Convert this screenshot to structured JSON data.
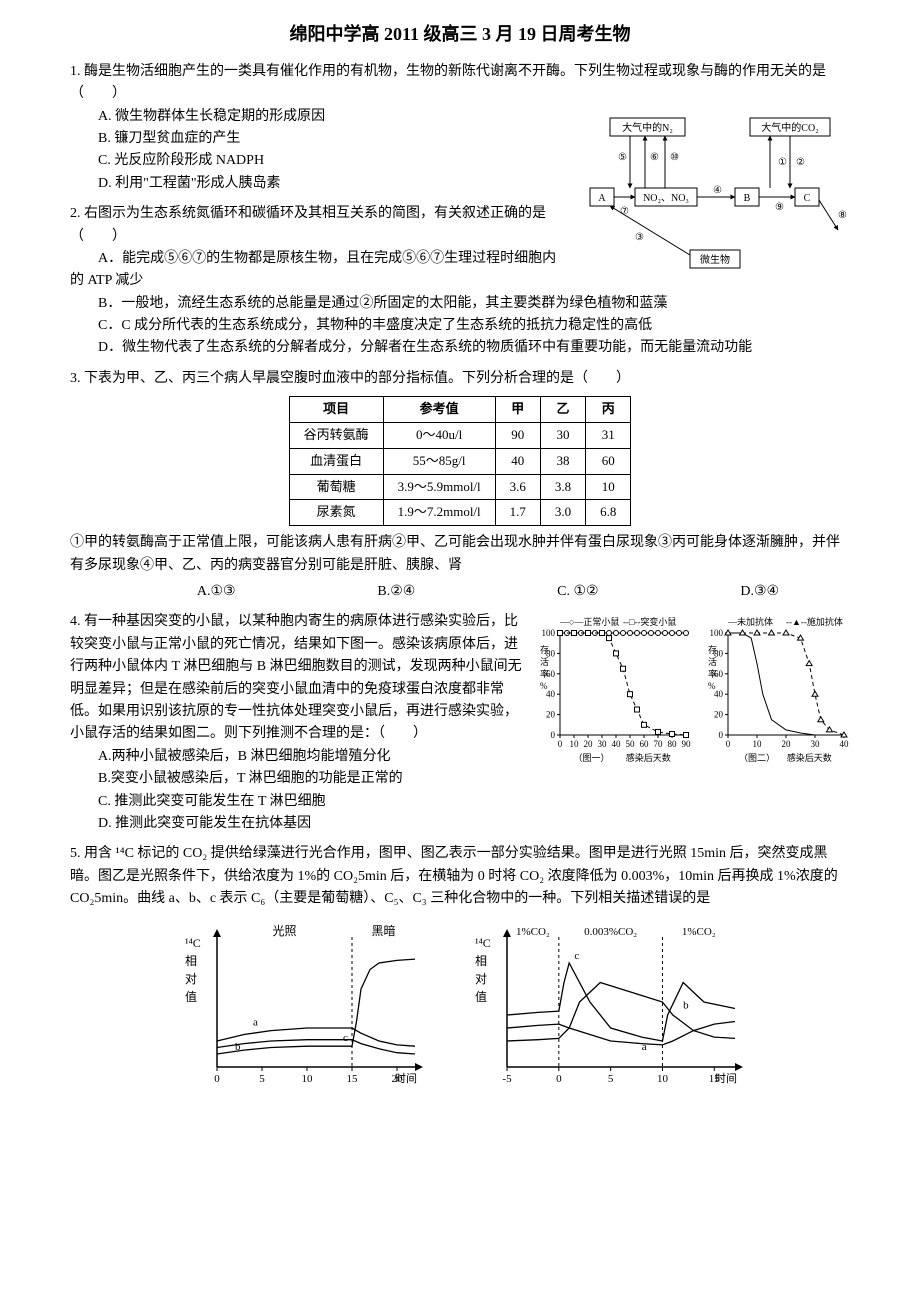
{
  "title": "绵阳中学高 2011 级高三 3 月 19 日周考生物",
  "q1": {
    "stem": "1. 酶是生物活细胞产生的一类具有催化作用的有机物，生物的新陈代谢离不开酶。下列生物过程或现象与酶的作用无关的是（　　）",
    "A": "A. 微生物群体生长稳定期的形成原因",
    "B": "B. 镰刀型贫血症的产生",
    "C": "C. 光反应阶段形成 NADPH",
    "D": "D. 利用\"工程菌\"形成人胰岛素"
  },
  "q2": {
    "stem1": "2. 右图示为生态系统氮循环和碳循环及其相互关系的简图，有关叙述正确的是（　　）",
    "A": "A．能完成⑤⑥⑦的生物都是原核生物，且在完成⑤⑥⑦生理过程时细胞内的 ATP 减少",
    "B": "B．一般地，流经生态系统的总能量是通过②所固定的太阳能，其主要类群为绿色植物和蓝藻",
    "C": "C．C 成分所代表的生态系统成分，其物种的丰盛度决定了生态系统的抵抗力稳定性的高低",
    "D": "D．微生物代表了生态系统的分解者成分，分解者在生态系统的物质循环中有重要功能，而无能量流动功能"
  },
  "q2_diagram": {
    "boxes": {
      "n2": "大气中的N₂",
      "co2": "大气中的CO₂",
      "a": "A",
      "no": "NO₂、NO₃",
      "b": "B",
      "c": "C",
      "micro": "微生物"
    },
    "labels": [
      "①",
      "②",
      "③",
      "④",
      "⑤",
      "⑥",
      "⑦",
      "⑧",
      "⑨",
      "⑩"
    ],
    "box_stroke": "#000000",
    "box_fill": "#ffffff",
    "arrow_color": "#000000",
    "fontsize": 10
  },
  "q3": {
    "stem": "3. 下表为甲、乙、丙三个病人早晨空腹时血液中的部分指标值。下列分析合理的是（　　）",
    "table": {
      "columns": [
        "项目",
        "参考值",
        "甲",
        "乙",
        "丙"
      ],
      "rows": [
        [
          "谷丙转氨酶",
          "0～40u/l",
          "90",
          "30",
          "31"
        ],
        [
          "血清蛋白",
          "55～85g/l",
          "40",
          "38",
          "60"
        ],
        [
          "葡萄糖",
          "3.9～5.9mmol/l",
          "3.6",
          "3.8",
          "10"
        ],
        [
          "尿素氮",
          "1.9～7.2mmol/l",
          "1.7",
          "3.0",
          "6.8"
        ]
      ],
      "border_color": "#000000",
      "header_bg": "#ffffff"
    },
    "desc": "①甲的转氨酶高于正常值上限，可能该病人患有肝病②甲、乙可能会出现水肿并伴有蛋白尿现象③丙可能身体逐渐臃肿，并伴有多尿现象④甲、乙、丙的病变器官分别可能是肝脏、胰腺、肾",
    "opts": {
      "A": "A.①③",
      "B": "B.②④",
      "C": "C. ①②",
      "D": "D.③④"
    }
  },
  "q4": {
    "stem": "4. 有一种基因突变的小鼠，以某种胞内寄生的病原体进行感染实验后，比较突变小鼠与正常小鼠的死亡情况，结果如下图一。感染该病原体后，进行两种小鼠体内 T 淋巴细胞与 B 淋巴细胞数目的测试，发现两种小鼠间无明显差异；但是在感染前后的突变小鼠血清中的免疫球蛋白浓度都非常低。如果用识别该抗原的专一性抗体处理突变小鼠后，再进行感染实验，小鼠存活的结果如图二。则下列推测不合理的是：（　　）",
    "A": "A.两种小鼠被感染后，B 淋巴细胞均能增殖分化",
    "B": "B.突变小鼠被感染后，T 淋巴细胞的功能是正常的",
    "C": "C. 推测此突变可能发生在 T 淋巴细胞",
    "D": "D. 推测此突变可能发生在抗体基因"
  },
  "q4_chart1": {
    "type": "line",
    "title_top_left": "—○—正常小鼠",
    "title_top_right": "--□--突变小鼠",
    "ylabel": "存活率%",
    "xlabel": "（图一）",
    "xlabel2": "感染后天数",
    "xlim": [
      0,
      90
    ],
    "ylim": [
      0,
      100
    ],
    "xticks": [
      0,
      10,
      20,
      30,
      40,
      50,
      60,
      70,
      80,
      90
    ],
    "yticks": [
      0,
      20,
      40,
      60,
      80,
      100
    ],
    "series": [
      {
        "name": "正常",
        "marker": "circle",
        "dash": "none",
        "color": "#000000",
        "x": [
          0,
          5,
          10,
          15,
          20,
          25,
          30,
          35,
          40,
          45,
          50,
          55,
          60,
          65,
          70,
          75,
          80,
          85,
          90
        ],
        "y": [
          100,
          100,
          100,
          100,
          100,
          100,
          100,
          100,
          100,
          100,
          100,
          100,
          100,
          100,
          100,
          100,
          100,
          100,
          100
        ]
      },
      {
        "name": "突变",
        "marker": "square",
        "dash": "4,3",
        "color": "#000000",
        "x": [
          0,
          10,
          20,
          30,
          35,
          40,
          45,
          50,
          55,
          60,
          70,
          80,
          90
        ],
        "y": [
          100,
          100,
          100,
          100,
          95,
          80,
          65,
          40,
          25,
          10,
          3,
          1,
          0
        ]
      }
    ],
    "grid_color": "#cccccc",
    "background": "#ffffff",
    "fontsize": 9
  },
  "q4_chart2": {
    "type": "line",
    "title_top_left": "—未加抗体",
    "title_top_right": "--▲--施加抗体",
    "ylabel": "存活率%",
    "xlabel": "（图二）",
    "xlabel2": "感染后天数",
    "xlim": [
      0,
      40
    ],
    "ylim": [
      0,
      100
    ],
    "xticks": [
      0,
      10,
      20,
      30,
      40
    ],
    "yticks": [
      0,
      20,
      40,
      60,
      80,
      100
    ],
    "series": [
      {
        "name": "未加",
        "marker": "none",
        "dash": "none",
        "color": "#000000",
        "x": [
          0,
          5,
          8,
          10,
          12,
          15,
          20,
          25,
          30,
          35,
          40
        ],
        "y": [
          100,
          100,
          95,
          70,
          40,
          15,
          5,
          2,
          0,
          0,
          0
        ]
      },
      {
        "name": "施加",
        "marker": "triangle",
        "dash": "4,3",
        "color": "#000000",
        "x": [
          0,
          5,
          10,
          15,
          20,
          25,
          28,
          30,
          32,
          35,
          40
        ],
        "y": [
          100,
          100,
          100,
          100,
          100,
          95,
          70,
          40,
          15,
          5,
          0
        ]
      }
    ],
    "grid_color": "#cccccc",
    "background": "#ffffff",
    "fontsize": 9
  },
  "q5": {
    "stem": "5. 用含 ¹⁴C 标记的 CO₂ 提供给绿藻进行光合作用，图甲、图乙表示一部分实验结果。图甲是进行光照 15min 后，突然变成黑暗。图乙是光照条件下，供给浓度为 1%的 CO₂5min 后，在横轴为 0 时将 CO₂ 浓度降低为 0.003%，10min 后再换成 1%浓度的 CO₂5min。曲线 a、b、c 表示 C₆（主要是葡萄糖）、C₅、C₃ 三种化合物中的一种。下列相关描述错误的是"
  },
  "q5_chart1": {
    "type": "line",
    "ylabel_lines": [
      "¹⁴C",
      "相",
      "对",
      "值"
    ],
    "xlabel": "时间",
    "top_left": "光照",
    "top_right": "黑暗",
    "xlim": [
      0,
      22
    ],
    "ylim": [
      0,
      10
    ],
    "xticks": [
      0,
      5,
      10,
      15,
      20
    ],
    "divider_x": 15,
    "series": [
      {
        "name": "a",
        "color": "#000000",
        "x": [
          0,
          3,
          6,
          10,
          14,
          15,
          16,
          18,
          20,
          22
        ],
        "y": [
          2.0,
          2.5,
          2.8,
          3.0,
          3.0,
          3.0,
          2.6,
          2.0,
          1.7,
          1.6
        ],
        "label_at": [
          4,
          3.2
        ]
      },
      {
        "name": "b",
        "color": "#000000",
        "x": [
          0,
          3,
          6,
          10,
          14,
          15,
          16,
          18,
          20,
          22
        ],
        "y": [
          1.5,
          1.8,
          2.0,
          2.1,
          2.1,
          2.1,
          1.8,
          1.4,
          1.1,
          1.0
        ],
        "label_at": [
          2,
          1.3
        ]
      },
      {
        "name": "c",
        "color": "#000000",
        "x": [
          0,
          3,
          6,
          10,
          14,
          15,
          15.5,
          16,
          17,
          18,
          20,
          22
        ],
        "y": [
          1.0,
          1.3,
          1.5,
          1.6,
          1.6,
          1.6,
          3.5,
          6.0,
          7.5,
          8.0,
          8.2,
          8.3
        ],
        "label_at": [
          14,
          2.0
        ]
      }
    ],
    "axis_color": "#000000",
    "fontsize": 11
  },
  "q5_chart2": {
    "type": "line",
    "ylabel_lines": [
      "¹⁴C",
      "相",
      "对",
      "值"
    ],
    "xlabel": "时间",
    "top_l": "1%CO₂",
    "top_m": "0.003%CO₂",
    "top_r": "1%CO₂",
    "xlim": [
      -5,
      17
    ],
    "ylim": [
      0,
      10
    ],
    "xticks": [
      -5,
      0,
      5,
      10,
      15
    ],
    "dividers": [
      0,
      10
    ],
    "series": [
      {
        "name": "a",
        "color": "#000000",
        "x": [
          -5,
          -2,
          0,
          1,
          3,
          5,
          8,
          10,
          11,
          13,
          15,
          17
        ],
        "y": [
          3.0,
          3.2,
          3.3,
          3.0,
          2.5,
          2.0,
          1.8,
          1.7,
          2.0,
          2.8,
          3.3,
          3.5
        ],
        "label_at": [
          8,
          1.3
        ]
      },
      {
        "name": "b",
        "color": "#000000",
        "x": [
          -5,
          -2,
          0,
          1,
          2,
          4,
          6,
          8,
          10,
          11,
          13,
          15,
          17
        ],
        "y": [
          2.0,
          2.1,
          2.2,
          3.0,
          5.0,
          6.5,
          6.0,
          5.5,
          5.0,
          4.0,
          2.8,
          2.3,
          2.2
        ],
        "label_at": [
          12,
          4.5
        ]
      },
      {
        "name": "c",
        "color": "#000000",
        "x": [
          -5,
          -2,
          0,
          0.5,
          1,
          3,
          5,
          8,
          10,
          10.5,
          12,
          14,
          17
        ],
        "y": [
          4.0,
          4.2,
          4.3,
          6.5,
          8.0,
          5.0,
          3.0,
          2.3,
          2.0,
          4.0,
          6.5,
          5.0,
          4.5
        ],
        "label_at": [
          1.5,
          8.3
        ]
      }
    ],
    "axis_color": "#000000",
    "fontsize": 11
  }
}
